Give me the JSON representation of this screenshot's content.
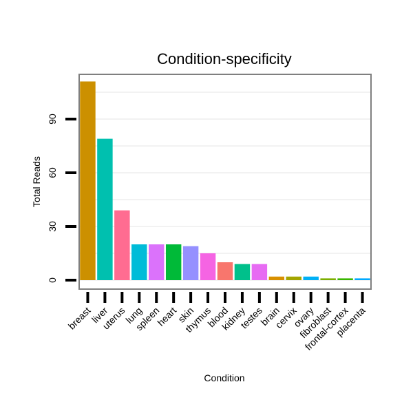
{
  "chart_data": {
    "type": "bar",
    "title": "Condition-specificity",
    "xlabel": "Condition",
    "ylabel": "Total Reads",
    "ylim": [
      -5,
      115
    ],
    "yticks": [
      0,
      30,
      60,
      90
    ],
    "grid": true,
    "categories": [
      "breast",
      "liver",
      "uterus",
      "lung",
      "spleen",
      "heart",
      "skin",
      "thymus",
      "blood",
      "kidney",
      "testes",
      "brain",
      "cervix",
      "ovary",
      "fibroblast",
      "frontal-cortex",
      "placenta"
    ],
    "values": [
      111,
      79,
      39,
      20,
      20,
      20,
      19,
      15,
      10,
      9,
      9,
      2,
      2,
      2,
      1,
      1,
      1
    ],
    "colors": [
      "#CC9000",
      "#00C0AF",
      "#FF6C91",
      "#00BCD8",
      "#DB72FB",
      "#00BA38",
      "#9590FF",
      "#F564E3",
      "#F8766D",
      "#00C08B",
      "#E76BF3",
      "#D89000",
      "#A3A500",
      "#00B0F6",
      "#7CAE00",
      "#39B600",
      "#00A9FF"
    ]
  }
}
